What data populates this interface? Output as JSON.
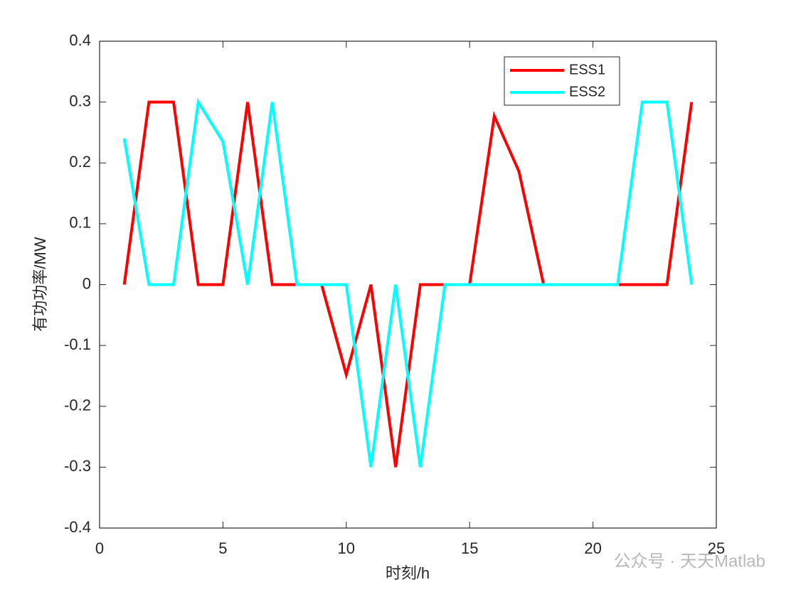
{
  "chart_data": {
    "type": "line",
    "xlabel": "时刻/h",
    "ylabel": "有功功率/MW",
    "x": [
      1,
      2,
      3,
      4,
      5,
      6,
      7,
      8,
      9,
      10,
      11,
      12,
      13,
      14,
      15,
      16,
      17,
      18,
      19,
      20,
      21,
      22,
      23,
      24
    ],
    "series": [
      {
        "name": "ESS1",
        "color": "#ff0000",
        "values": [
          0,
          0.3,
          0.3,
          0,
          0,
          0.3,
          0,
          0,
          0,
          -0.148,
          0,
          -0.3,
          0,
          0,
          0,
          0.277,
          0.186,
          0,
          0,
          0,
          0,
          0,
          0,
          0.3
        ]
      },
      {
        "name": "ESS2",
        "color": "#00ffff",
        "values": [
          0.24,
          0,
          0,
          0.3,
          0.235,
          0,
          0.3,
          0,
          0,
          0,
          -0.3,
          0,
          -0.3,
          0,
          0,
          0,
          0,
          0,
          0,
          0,
          0,
          0.3,
          0.3,
          0
        ]
      }
    ],
    "xlim": [
      0,
      25
    ],
    "xticks": [
      0,
      5,
      10,
      15,
      20,
      25
    ],
    "ylim": [
      -0.4,
      0.4
    ],
    "yticks": [
      -0.4,
      -0.3,
      -0.2,
      -0.1,
      0,
      0.1,
      0.2,
      0.3,
      0.4
    ],
    "legend": "northeast",
    "grid": false
  },
  "watermark": "公众号 · 天天Matlab"
}
